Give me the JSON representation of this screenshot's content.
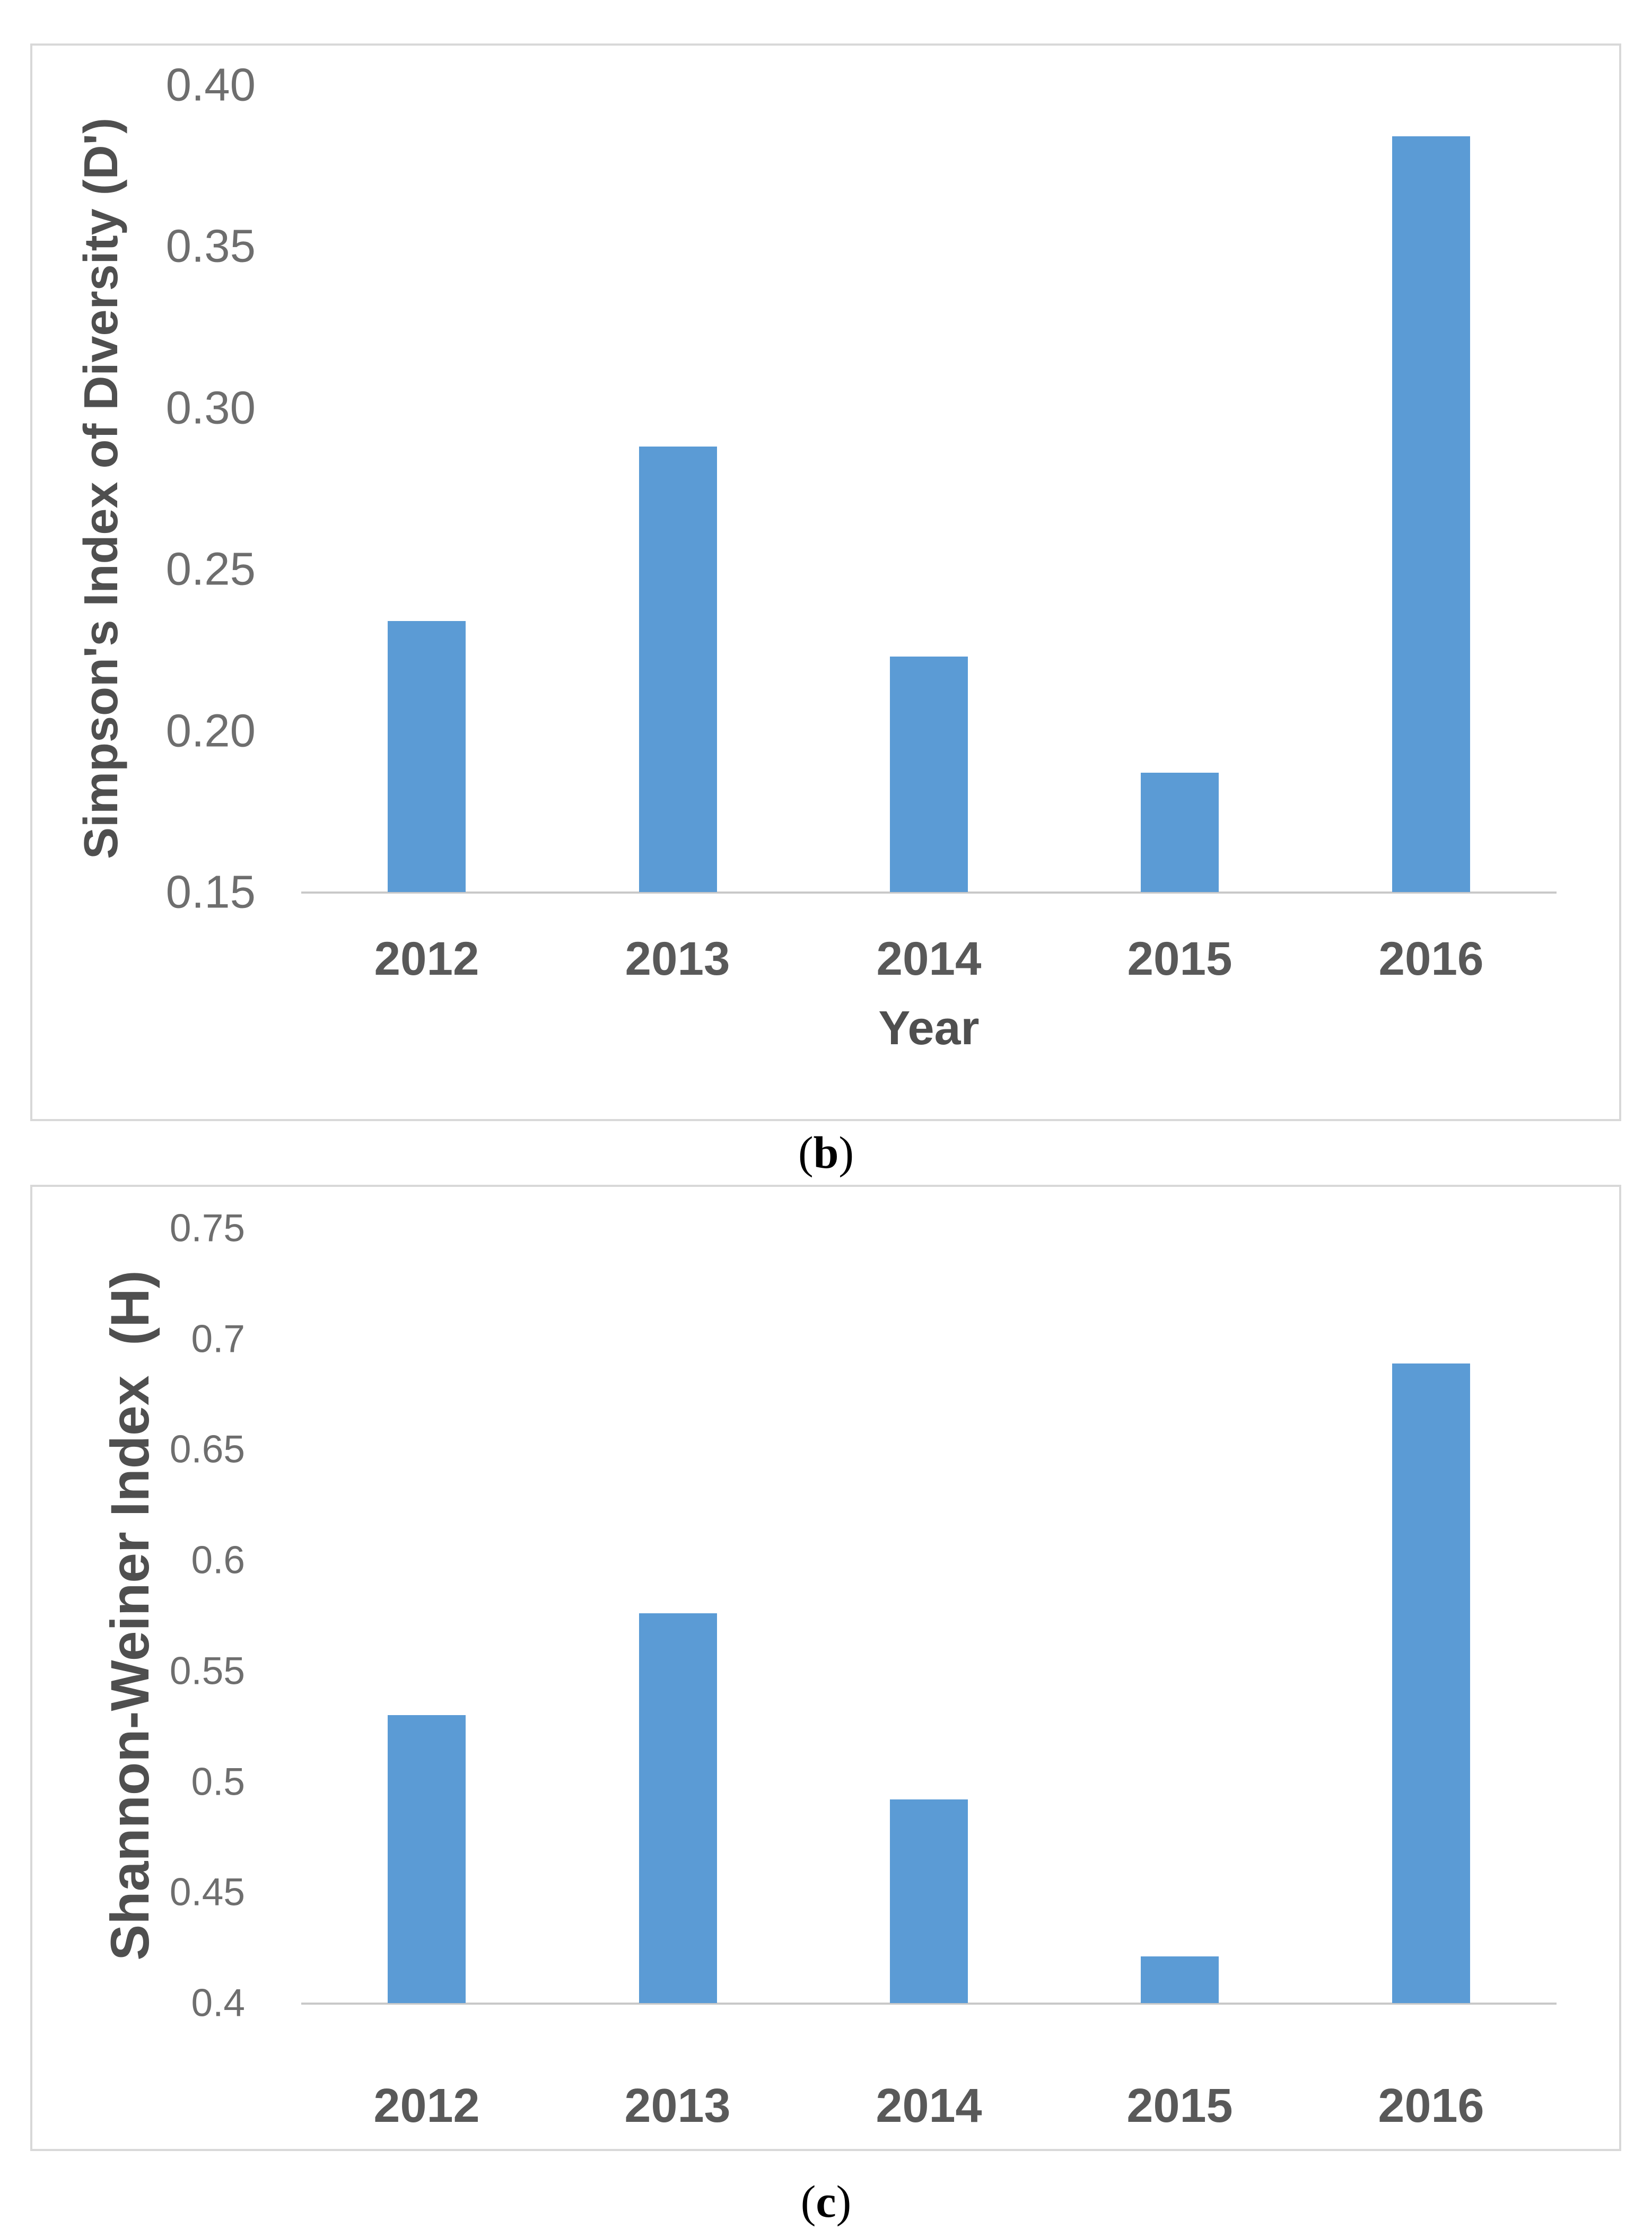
{
  "colors": {
    "bar": "#5b9bd5",
    "axis_line": "#c9c9c9",
    "tick_text": "#6e6e6e",
    "title_text": "#4f4f4f",
    "panel_border": "#d8d8d8"
  },
  "captions": [
    {
      "prefix": "(",
      "letter": "b",
      "suffix": ")"
    },
    {
      "prefix": "(",
      "letter": "c",
      "suffix": ")"
    }
  ],
  "chart_data": [
    {
      "type": "bar",
      "panel": "b",
      "title": "",
      "xlabel": "Year",
      "ylabel": "Simpson's Index of Diversity (D')",
      "categories": [
        "2012",
        "2013",
        "2014",
        "2015",
        "2016"
      ],
      "values": [
        0.234,
        0.288,
        0.223,
        0.187,
        0.384
      ],
      "ylim": [
        0.15,
        0.4
      ],
      "yticks": [
        {
          "value": 0.4,
          "label": "0.40"
        },
        {
          "value": 0.35,
          "label": "0.35"
        },
        {
          "value": 0.3,
          "label": "0.30"
        },
        {
          "value": 0.25,
          "label": "0.25"
        },
        {
          "value": 0.2,
          "label": "0.20"
        },
        {
          "value": 0.15,
          "label": "0.15"
        }
      ],
      "grid": false,
      "legend": null,
      "bar_color": "#5b9bd5"
    },
    {
      "type": "bar",
      "panel": "c",
      "title": "",
      "xlabel": "",
      "ylabel": "Shannon-Weiner Index  (H)",
      "categories": [
        "2012",
        "2013",
        "2014",
        "2015",
        "2016"
      ],
      "values": [
        0.53,
        0.576,
        0.492,
        0.421,
        0.689
      ],
      "ylim": [
        0.4,
        0.75
      ],
      "yticks": [
        {
          "value": 0.75,
          "label": "0.75"
        },
        {
          "value": 0.7,
          "label": "0.7"
        },
        {
          "value": 0.65,
          "label": "0.65"
        },
        {
          "value": 0.6,
          "label": "0.6"
        },
        {
          "value": 0.55,
          "label": "0.55"
        },
        {
          "value": 0.5,
          "label": "0.5"
        },
        {
          "value": 0.45,
          "label": "0.45"
        },
        {
          "value": 0.4,
          "label": "0.4"
        }
      ],
      "grid": false,
      "legend": null,
      "bar_color": "#5b9bd5"
    }
  ]
}
